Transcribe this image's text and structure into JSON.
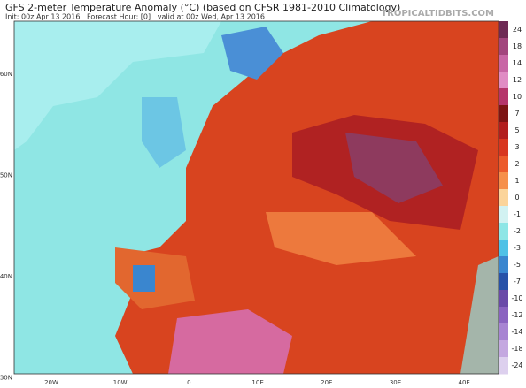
{
  "header": {
    "title": "GFS 2-meter Temperature Anomaly (°C) (based on CFSR 1981-2010 Climatology)",
    "subtitle": "Init: 00z Apr 13 2016   Forecast Hour: [0]   valid at 00z Wed, Apr 13 2016",
    "brand": "TROPICALTIDBITS.COM"
  },
  "map": {
    "lat_labels": [
      "60N",
      "50N",
      "40N",
      "30N"
    ],
    "lon_labels": [
      "20W",
      "10W",
      "0",
      "10E",
      "20E",
      "30E",
      "40E"
    ]
  },
  "colorbar": {
    "levels": [
      24,
      18,
      14,
      12,
      10,
      7,
      5,
      3,
      2,
      1,
      0,
      -1,
      -2,
      -3,
      -5,
      -7,
      -10,
      -12,
      -14,
      -18,
      -24
    ],
    "colors": [
      "#6e2a55",
      "#a2457d",
      "#c866a5",
      "#e08cc4",
      "#b5356b",
      "#7d1414",
      "#b21e1e",
      "#d8361f",
      "#ec5b2b",
      "#f6904a",
      "#fbd49a",
      "#d2f2f2",
      "#8ee6e6",
      "#4fc1e6",
      "#3a86cf",
      "#2852a8",
      "#6a4aa8",
      "#8a63c0",
      "#a784d2",
      "#c4a8e0",
      "#ddd0ee"
    ]
  }
}
